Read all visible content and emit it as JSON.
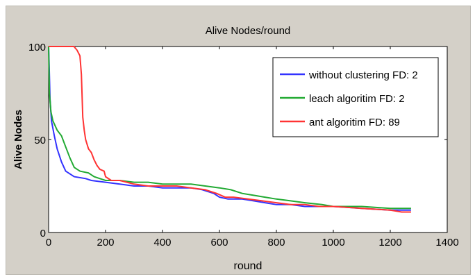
{
  "chart_data": {
    "type": "line",
    "title": "Alive Nodes/round",
    "xlabel": "round",
    "ylabel": "Alive Nodes",
    "xlim": [
      0,
      1400
    ],
    "ylim": [
      0,
      100
    ],
    "x_ticks": [
      0,
      200,
      400,
      600,
      800,
      1000,
      1200,
      1400
    ],
    "y_ticks": [
      0,
      50,
      100
    ],
    "grid": false,
    "legend_position": "top-right",
    "series": [
      {
        "name": "without clustering FD: 2",
        "color": "#3333ff",
        "points": [
          [
            0,
            100
          ],
          [
            2,
            90
          ],
          [
            5,
            72
          ],
          [
            10,
            60
          ],
          [
            20,
            52
          ],
          [
            30,
            45
          ],
          [
            45,
            38
          ],
          [
            60,
            33
          ],
          [
            90,
            30
          ],
          [
            130,
            29
          ],
          [
            150,
            28
          ],
          [
            200,
            27
          ],
          [
            250,
            26
          ],
          [
            300,
            25
          ],
          [
            350,
            25
          ],
          [
            400,
            24
          ],
          [
            450,
            24
          ],
          [
            500,
            24
          ],
          [
            540,
            23
          ],
          [
            580,
            21
          ],
          [
            600,
            19
          ],
          [
            630,
            18
          ],
          [
            680,
            18
          ],
          [
            720,
            17
          ],
          [
            760,
            16
          ],
          [
            800,
            15
          ],
          [
            850,
            15
          ],
          [
            900,
            14
          ],
          [
            1000,
            14
          ],
          [
            1100,
            13
          ],
          [
            1200,
            12
          ],
          [
            1273,
            12
          ]
        ]
      },
      {
        "name": "leach algoritim FD: 2",
        "color": "#22aa33",
        "points": [
          [
            0,
            100
          ],
          [
            3,
            75
          ],
          [
            8,
            65
          ],
          [
            15,
            60
          ],
          [
            30,
            55
          ],
          [
            45,
            52
          ],
          [
            60,
            46
          ],
          [
            75,
            40
          ],
          [
            90,
            35
          ],
          [
            110,
            33
          ],
          [
            140,
            32
          ],
          [
            160,
            30
          ],
          [
            180,
            29
          ],
          [
            200,
            28
          ],
          [
            250,
            28
          ],
          [
            300,
            27
          ],
          [
            350,
            27
          ],
          [
            400,
            26
          ],
          [
            450,
            26
          ],
          [
            500,
            26
          ],
          [
            550,
            25
          ],
          [
            600,
            24
          ],
          [
            640,
            23
          ],
          [
            680,
            21
          ],
          [
            720,
            20
          ],
          [
            760,
            19
          ],
          [
            800,
            18
          ],
          [
            850,
            17
          ],
          [
            900,
            16
          ],
          [
            960,
            15
          ],
          [
            1000,
            14
          ],
          [
            1100,
            14
          ],
          [
            1200,
            13
          ],
          [
            1273,
            13
          ]
        ]
      },
      {
        "name": "ant algoritim FD: 89",
        "color": "#ff3333",
        "points": [
          [
            0,
            100
          ],
          [
            89,
            100
          ],
          [
            100,
            98
          ],
          [
            110,
            95
          ],
          [
            115,
            85
          ],
          [
            120,
            62
          ],
          [
            125,
            55
          ],
          [
            130,
            50
          ],
          [
            140,
            45
          ],
          [
            150,
            43
          ],
          [
            160,
            39
          ],
          [
            170,
            36
          ],
          [
            180,
            34
          ],
          [
            195,
            33
          ],
          [
            200,
            30
          ],
          [
            220,
            28
          ],
          [
            250,
            28
          ],
          [
            300,
            26
          ],
          [
            350,
            25
          ],
          [
            400,
            25
          ],
          [
            450,
            25
          ],
          [
            500,
            24
          ],
          [
            550,
            23
          ],
          [
            590,
            21
          ],
          [
            620,
            19
          ],
          [
            650,
            19
          ],
          [
            700,
            18
          ],
          [
            750,
            17
          ],
          [
            800,
            16
          ],
          [
            850,
            15
          ],
          [
            900,
            15
          ],
          [
            950,
            14
          ],
          [
            1000,
            14
          ],
          [
            1100,
            13
          ],
          [
            1200,
            12
          ],
          [
            1240,
            11
          ],
          [
            1273,
            11
          ]
        ]
      }
    ]
  }
}
